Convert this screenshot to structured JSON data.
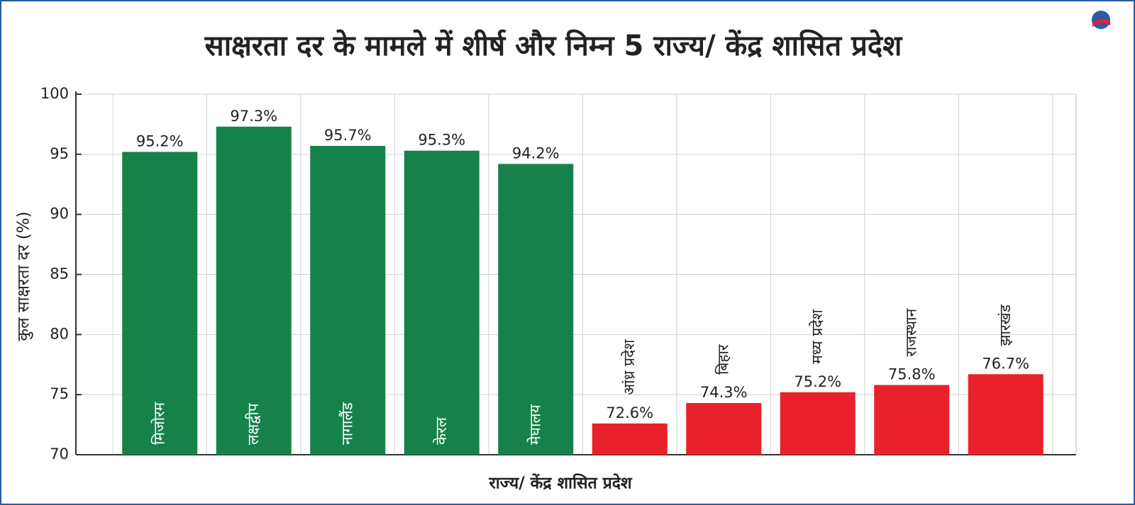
{
  "chart_data": {
    "type": "bar",
    "title": "साक्षरता दर के मामले में शीर्ष और निम्न 5 राज्य/ केंद्र शासित प्रदेश",
    "x_label": "राज्य/ केंद्र शासित प्रदेश",
    "y_label": "कुल साक्षरता दर (%)",
    "categories": [
      "मिजोरम",
      "लक्षद्वीप",
      "नागालैंड",
      "केरल",
      "मेघालय",
      "आंध्र प्रदेश",
      "बिहार",
      "मध्य प्रदेश",
      "राजस्थान",
      "झारखंड"
    ],
    "values": [
      95.2,
      97.3,
      95.7,
      95.3,
      94.2,
      72.6,
      74.3,
      75.2,
      75.8,
      76.7
    ],
    "value_labels": [
      "95.2%",
      "97.3%",
      "95.7%",
      "95.3%",
      "94.2%",
      "72.6%",
      "74.3%",
      "75.2%",
      "75.8%",
      "76.7%"
    ],
    "colors": [
      "#16824a",
      "#16824a",
      "#16824a",
      "#16824a",
      "#16824a",
      "#e8212a",
      "#e8212a",
      "#e8212a",
      "#e8212a",
      "#e8212a"
    ],
    "ylim": [
      70,
      100
    ],
    "yticks": [
      70,
      75,
      80,
      85,
      90,
      95,
      100
    ],
    "grid": true
  }
}
